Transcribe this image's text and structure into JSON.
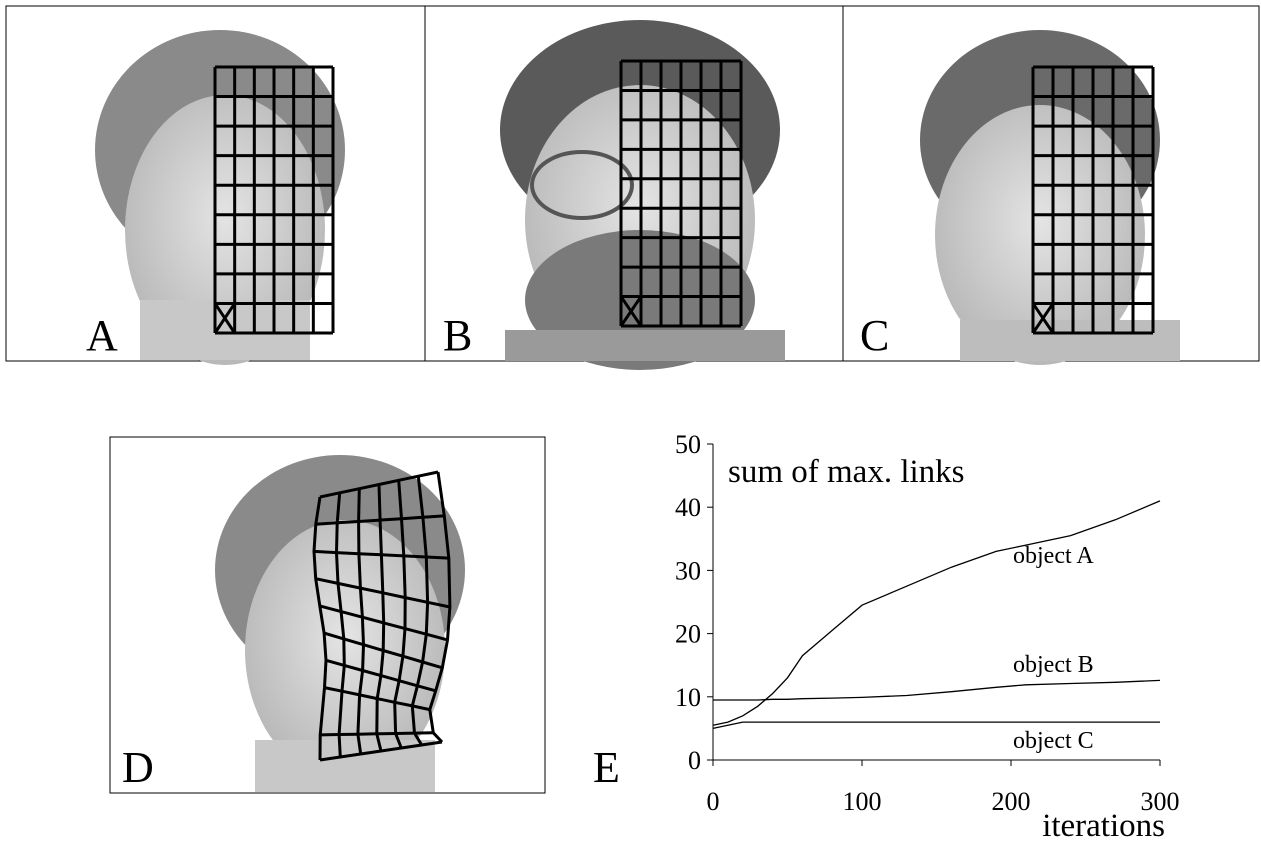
{
  "panels": {
    "labels": [
      "A",
      "B",
      "C",
      "D",
      "E"
    ]
  },
  "chart_data": {
    "type": "line",
    "title": "sum of max. links",
    "x_label": "iterations",
    "x": [
      0,
      10,
      20,
      30,
      40,
      50,
      60,
      80,
      100,
      130,
      160,
      190,
      210,
      240,
      270,
      300
    ],
    "series": [
      {
        "name": "object A",
        "color": "#000000",
        "values": [
          5.5,
          6,
          7,
          8.5,
          10.5,
          13,
          16.5,
          20.5,
          24.5,
          27.5,
          30.5,
          33,
          34,
          35.5,
          38,
          41
        ]
      },
      {
        "name": "object B",
        "color": "#000000",
        "values": [
          9.5,
          9.5,
          9.5,
          9.5,
          9.6,
          9.6,
          9.7,
          9.8,
          9.9,
          10.2,
          10.8,
          11.5,
          11.9,
          12.1,
          12.3,
          12.6
        ]
      },
      {
        "name": "object C",
        "color": "#000000",
        "values": [
          5,
          5.5,
          6,
          6,
          6,
          6,
          6,
          6,
          6,
          6,
          6,
          6,
          6,
          6,
          6,
          6
        ]
      }
    ],
    "xlim": [
      0,
      300
    ],
    "xticks": [
      0,
      100,
      200,
      300
    ],
    "ylim": [
      0,
      50
    ],
    "yticks": [
      0,
      10,
      20,
      30,
      40,
      50
    ]
  }
}
